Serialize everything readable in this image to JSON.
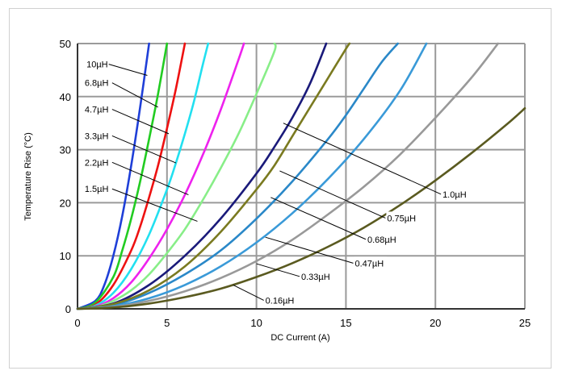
{
  "chart_data": {
    "type": "line",
    "xlabel": "DC Current (A)",
    "ylabel": "Temperature Rise (°C)",
    "xlim": [
      0,
      25
    ],
    "ylim": [
      0,
      50
    ],
    "x_ticks": [
      "0",
      "5",
      "10",
      "15",
      "20",
      "25"
    ],
    "y_ticks": [
      "0",
      "10",
      "20",
      "30",
      "40",
      "50"
    ],
    "grid": true,
    "series": [
      {
        "name": "10µH",
        "color": "#1f3fd8",
        "x": [
          0,
          1,
          1.5,
          2,
          2.5,
          3,
          3.5,
          4
        ],
        "y": [
          0,
          1.5,
          4.5,
          10,
          17.5,
          27,
          38,
          50
        ]
      },
      {
        "name": "6.8µH",
        "color": "#22cc22",
        "x": [
          0,
          1,
          2,
          2.5,
          3,
          3.5,
          4,
          4.5,
          5
        ],
        "y": [
          0,
          1.2,
          6,
          11,
          17,
          24,
          32,
          40.5,
          50
        ]
      },
      {
        "name": "4.7µH",
        "color": "#ee1111",
        "x": [
          0,
          1,
          2,
          3,
          3.5,
          4,
          4.5,
          5,
          5.5,
          6
        ],
        "y": [
          0,
          0.8,
          4.5,
          11,
          15.5,
          21,
          27,
          34,
          41.5,
          50
        ]
      },
      {
        "name": "3.3µH",
        "color": "#22e0f0",
        "x": [
          0,
          1,
          2,
          3,
          4,
          5,
          5.5,
          6,
          6.5,
          7,
          7.3
        ],
        "y": [
          0,
          0.6,
          3,
          7.5,
          14,
          22.5,
          27.5,
          33,
          39,
          46,
          50
        ]
      },
      {
        "name": "2.2µH",
        "color": "#ee22ee",
        "x": [
          0,
          1,
          2,
          3,
          4,
          5,
          6,
          7,
          8,
          9,
          9.3
        ],
        "y": [
          0,
          0.4,
          2,
          5,
          9.5,
          15,
          21.5,
          29,
          37.5,
          47,
          50
        ]
      },
      {
        "name": "1.5µH",
        "color": "#88ee88",
        "x": [
          0,
          1,
          2,
          3,
          4,
          5,
          6,
          7,
          8,
          9,
          10,
          11,
          11
        ],
        "y": [
          0,
          0.3,
          1.5,
          3.5,
          6.5,
          10.5,
          15,
          20.5,
          26.5,
          33,
          40.5,
          48.5,
          50
        ]
      },
      {
        "name": "1.0µH",
        "color": "#1a1a7a",
        "x": [
          0,
          2,
          4,
          6,
          8,
          10,
          11,
          12,
          13,
          13.9
        ],
        "y": [
          0,
          1,
          4.5,
          10,
          17,
          25.5,
          30.5,
          36,
          42.5,
          50
        ]
      },
      {
        "name": "0.75µH",
        "color": "#2a88c8",
        "x": [
          0,
          2,
          4,
          6,
          8,
          10,
          12,
          14,
          15,
          16,
          17,
          17.9
        ],
        "y": [
          0,
          0.7,
          3,
          6.5,
          11,
          17,
          24,
          32,
          36.5,
          41.5,
          46.5,
          50
        ]
      },
      {
        "name": "0.68µH",
        "color": "#7a7a20",
        "x": [
          0,
          2,
          4,
          6,
          8,
          10,
          11,
          12,
          13,
          14,
          15,
          15.2
        ],
        "y": [
          0,
          0.9,
          3.5,
          8,
          14.5,
          22.5,
          27,
          32.5,
          38,
          43.5,
          49,
          50
        ]
      },
      {
        "name": "0.47µH",
        "color": "#3a9ad8",
        "x": [
          0,
          2,
          4,
          6,
          8,
          10,
          12,
          14,
          16,
          18,
          19.5
        ],
        "y": [
          0,
          0.5,
          2,
          4.5,
          8,
          12.5,
          18,
          24.5,
          32,
          41,
          50
        ]
      },
      {
        "name": "0.33µH",
        "color": "#999999",
        "x": [
          0,
          2,
          4,
          6,
          8,
          10,
          12,
          14,
          16,
          18,
          20,
          22,
          23.5
        ],
        "y": [
          0,
          0.35,
          1.5,
          3.3,
          5.8,
          9,
          13,
          17.8,
          23,
          29,
          36,
          43.5,
          50
        ]
      },
      {
        "name": "0.16µH",
        "color": "#5a5a20",
        "x": [
          0,
          2,
          4,
          6,
          8,
          10,
          12,
          14,
          16,
          18,
          20,
          22,
          24,
          25
        ],
        "y": [
          0,
          0.25,
          1,
          2.2,
          3.8,
          6,
          8.6,
          11.7,
          15.3,
          19.5,
          24.2,
          29.3,
          34.8,
          37.8
        ]
      }
    ],
    "annotations": [
      {
        "label": "10µH",
        "text_at": [
          0.5,
          45.5
        ],
        "arrow_to": [
          3.9,
          44
        ]
      },
      {
        "label": "6.8µH",
        "text_at": [
          0.4,
          42
        ],
        "arrow_to": [
          4.5,
          38
        ]
      },
      {
        "label": "4.7µH",
        "text_at": [
          0.4,
          37
        ],
        "arrow_to": [
          5.1,
          33
        ]
      },
      {
        "label": "3.3µH",
        "text_at": [
          0.4,
          32
        ],
        "arrow_to": [
          5.5,
          27.5
        ]
      },
      {
        "label": "2.2µH",
        "text_at": [
          0.4,
          27
        ],
        "arrow_to": [
          6.2,
          21.5
        ]
      },
      {
        "label": "1.5µH",
        "text_at": [
          0.4,
          22
        ],
        "arrow_to": [
          6.7,
          16.5
        ]
      },
      {
        "label": "1.0µH",
        "text_at": [
          20.4,
          21
        ],
        "arrow_to": [
          11.5,
          35
        ]
      },
      {
        "label": "0.75µH",
        "text_at": [
          17.3,
          16.5
        ],
        "arrow_to": [
          11.3,
          26
        ]
      },
      {
        "label": "0.68µH",
        "text_at": [
          16.2,
          12.5
        ],
        "arrow_to": [
          10.8,
          21
        ]
      },
      {
        "label": "0.47µH",
        "text_at": [
          15.5,
          8
        ],
        "arrow_to": [
          10.5,
          13.5
        ]
      },
      {
        "label": "0.33µH",
        "text_at": [
          12.5,
          5.5
        ],
        "arrow_to": [
          10,
          8.5
        ]
      },
      {
        "label": "0.16µH",
        "text_at": [
          10.5,
          1
        ],
        "arrow_to": [
          8.7,
          4.5
        ]
      }
    ]
  }
}
